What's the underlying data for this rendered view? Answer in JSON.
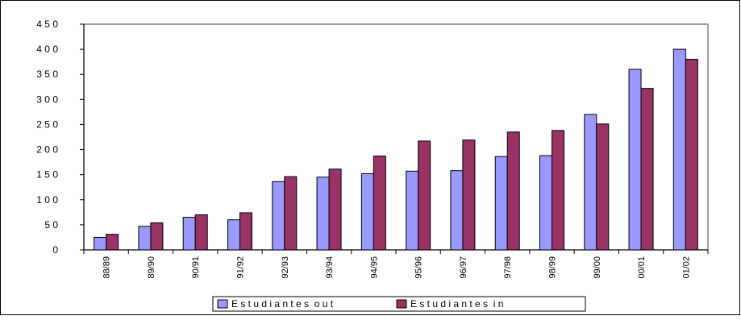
{
  "chart_data": {
    "type": "bar",
    "categories": [
      "88/89",
      "89/90",
      "90/91",
      "91/92",
      "92/93",
      "93/94",
      "94/95",
      "95/96",
      "96/97",
      "97/98",
      "98/99",
      "99/00",
      "00/01",
      "01/02"
    ],
    "series": [
      {
        "name": "Estudiantes out",
        "color": "#9999ff",
        "values": [
          25,
          47,
          65,
          60,
          136,
          145,
          152,
          157,
          158,
          186,
          188,
          270,
          360,
          400
        ]
      },
      {
        "name": "Estudiantes in",
        "color": "#993366",
        "values": [
          31,
          54,
          70,
          74,
          146,
          161,
          187,
          217,
          219,
          235,
          238,
          251,
          322,
          380
        ]
      }
    ],
    "y_ticks": [
      "0",
      "5 0",
      "1 0 0",
      "1 5 0",
      "2 0 0",
      "2 5 0",
      "3 0 0",
      "3 5 0",
      "4 0 0",
      "4 5 0"
    ],
    "legend_labels": [
      "E s t u d i a n t e s  o u t",
      "E s t u d i a n t e s  i n"
    ],
    "ylim": [
      0,
      450
    ],
    "grid": false,
    "legend_position": "bottom",
    "plot_background": "#ffffff"
  }
}
